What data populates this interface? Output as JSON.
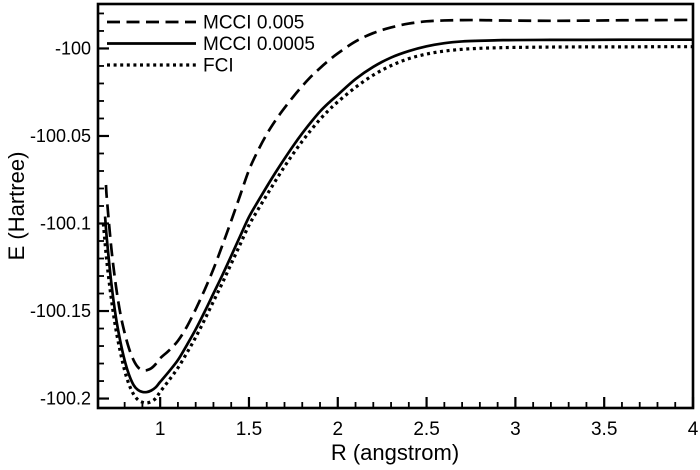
{
  "figure": {
    "background": "#ffffff",
    "ink_color": "#000000"
  },
  "chart_data": {
    "type": "line",
    "title": "",
    "xlabel": "R (angstrom)",
    "ylabel": "E (Hartree)",
    "xlim": [
      0.65,
      4.0
    ],
    "ylim": [
      -100.2054,
      -99.9746
    ],
    "grid": "off",
    "legend_position": "top-left-inside",
    "x_ticks": {
      "major": [
        1,
        1.5,
        2,
        2.5,
        3,
        3.5,
        4
      ],
      "labels": [
        "1",
        "1.5",
        "2",
        "2.5",
        "3",
        "3.5",
        "4"
      ],
      "minor_step": 0.1
    },
    "y_ticks": {
      "major": [
        -100,
        -100.05,
        -100.1,
        -100.15,
        -100.2
      ],
      "labels": [
        "-100",
        "-100.05",
        "-100.1",
        "-100.15",
        "-100.2"
      ],
      "minor_step": 0.01
    },
    "series": [
      {
        "name": "MCCI 0.005",
        "style": "dashed",
        "color": "#000000",
        "x": [
          0.695,
          0.7,
          0.725,
          0.75,
          0.775,
          0.8,
          0.825,
          0.85,
          0.875,
          0.9,
          0.925,
          0.95,
          0.975,
          1.0,
          1.05,
          1.1,
          1.15,
          1.2,
          1.25,
          1.3,
          1.35,
          1.4,
          1.45,
          1.5,
          1.55,
          1.6,
          1.65,
          1.7,
          1.75,
          1.8,
          1.85,
          1.9,
          1.95,
          2.0,
          2.1,
          2.2,
          2.3,
          2.4,
          2.5,
          2.6,
          2.7,
          2.8,
          2.9,
          3.0,
          3.2,
          3.4,
          3.6,
          3.8,
          4.0
        ],
        "y": [
          -100.078,
          -100.086,
          -100.114,
          -100.135,
          -100.151,
          -100.1625,
          -100.1715,
          -100.178,
          -100.1821,
          -100.1837,
          -100.1838,
          -100.1827,
          -100.1803,
          -100.177,
          -100.1725,
          -100.167,
          -100.159,
          -100.149,
          -100.138,
          -100.126,
          -100.1125,
          -100.0985,
          -100.084,
          -100.0695,
          -100.0585,
          -100.049,
          -100.041,
          -100.034,
          -100.0275,
          -100.0215,
          -100.016,
          -100.0112,
          -100.0068,
          -100.0028,
          -99.996,
          -99.9912,
          -99.988,
          -99.9858,
          -99.9845,
          -99.984,
          -99.9838,
          -99.9838,
          -99.984,
          -99.9841,
          -99.9842,
          -99.9841,
          -99.9839,
          -99.9838,
          -99.9837
        ]
      },
      {
        "name": "MCCI 0.0005",
        "style": "solid",
        "color": "#000000",
        "x": [
          0.69,
          0.7,
          0.725,
          0.75,
          0.775,
          0.8,
          0.825,
          0.85,
          0.875,
          0.9,
          0.925,
          0.95,
          0.975,
          1.0,
          1.05,
          1.1,
          1.15,
          1.2,
          1.25,
          1.3,
          1.35,
          1.4,
          1.45,
          1.5,
          1.55,
          1.6,
          1.65,
          1.7,
          1.75,
          1.8,
          1.85,
          1.9,
          1.95,
          2.0,
          2.1,
          2.2,
          2.3,
          2.4,
          2.5,
          2.6,
          2.7,
          2.8,
          2.9,
          3.0,
          3.2,
          3.4,
          3.6,
          3.8,
          4.0
        ],
        "y": [
          -100.096,
          -100.109,
          -100.134,
          -100.153,
          -100.167,
          -100.1782,
          -100.1865,
          -100.1922,
          -100.1951,
          -100.1962,
          -100.1963,
          -100.1954,
          -100.1936,
          -100.1905,
          -100.1845,
          -100.178,
          -100.1695,
          -100.1605,
          -100.1505,
          -100.14,
          -100.1295,
          -100.1185,
          -100.1073,
          -100.0963,
          -100.0875,
          -100.079,
          -100.0708,
          -100.063,
          -100.0555,
          -100.0485,
          -100.042,
          -100.036,
          -100.031,
          -100.0265,
          -100.0175,
          -100.0105,
          -100.0052,
          -100.0015,
          -99.9988,
          -99.997,
          -99.996,
          -99.9956,
          -99.9953,
          -99.9952,
          -99.9951,
          -99.9951,
          -99.995,
          -99.995,
          -99.995
        ]
      },
      {
        "name": "FCI",
        "style": "dotted",
        "color": "#000000",
        "x": [
          0.68,
          0.7,
          0.725,
          0.75,
          0.775,
          0.8,
          0.825,
          0.85,
          0.875,
          0.9,
          0.925,
          0.95,
          0.975,
          1.0,
          1.05,
          1.1,
          1.15,
          1.2,
          1.25,
          1.3,
          1.35,
          1.4,
          1.45,
          1.5,
          1.55,
          1.6,
          1.65,
          1.7,
          1.75,
          1.8,
          1.85,
          1.9,
          1.95,
          2.0,
          2.1,
          2.2,
          2.3,
          2.4,
          2.5,
          2.6,
          2.7,
          2.8,
          2.9,
          3.0,
          3.2,
          3.4,
          3.6,
          3.8,
          4.0
        ],
        "y": [
          -100.1,
          -100.122,
          -100.143,
          -100.16,
          -100.173,
          -100.184,
          -100.192,
          -100.1975,
          -100.2007,
          -100.2021,
          -100.2025,
          -100.2017,
          -100.1999,
          -100.1962,
          -100.1895,
          -100.1825,
          -100.174,
          -100.165,
          -100.155,
          -100.1445,
          -100.134,
          -100.123,
          -100.112,
          -100.101,
          -100.0922,
          -100.0838,
          -100.0755,
          -100.0675,
          -100.06,
          -100.053,
          -100.0465,
          -100.0405,
          -100.0352,
          -100.0305,
          -100.0222,
          -100.0152,
          -100.0098,
          -100.0058,
          -100.0032,
          -100.0015,
          -100.0005,
          -99.9999,
          -99.9996,
          -99.9994,
          -99.9992,
          -99.9991,
          -99.9991,
          -99.999,
          -99.999
        ]
      }
    ]
  }
}
